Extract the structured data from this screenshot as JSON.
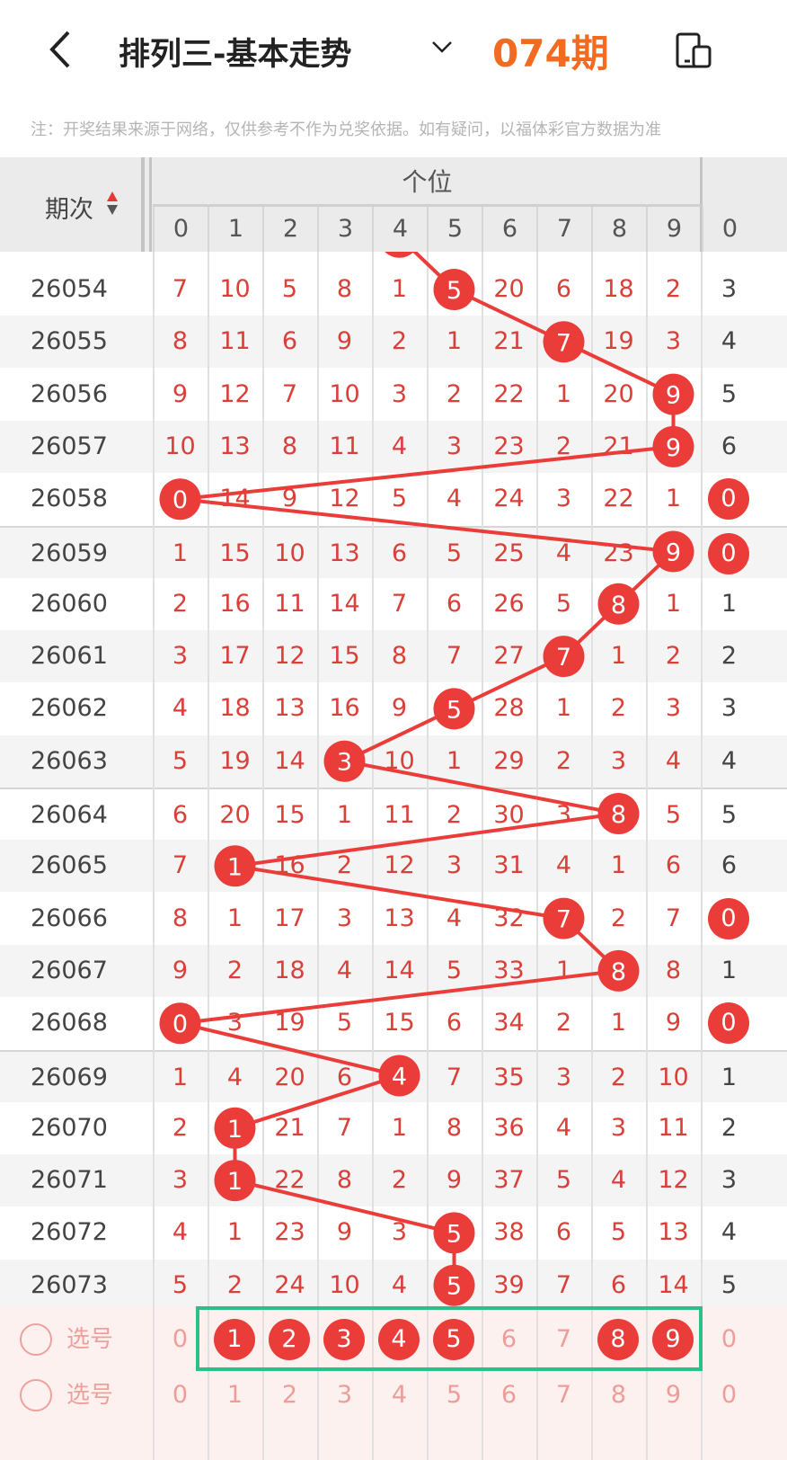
{
  "header": {
    "title": "排列三-基本走势",
    "back_icon": "chevron-left-icon",
    "dropdown_icon": "chevron-down-icon",
    "device_icon": "device-switch-icon"
  },
  "note": "注：开奖结果来源于网络，仅供参考不作为兑奖依据。如有疑问，以福体彩官方数据为准",
  "table": {
    "period_header": "期次",
    "group_header": "个位",
    "digits": [
      "0",
      "1",
      "2",
      "3",
      "4",
      "5",
      "6",
      "7",
      "8",
      "9"
    ],
    "next_group_first": "0",
    "colors": {
      "ball": "#ea3d3a",
      "miss": "#d9403a",
      "select_box": "#2bbf8a",
      "issue": "#f26b21"
    },
    "prev_hit": 4,
    "rows": [
      {
        "period": "26054",
        "cells": [
          7,
          10,
          5,
          8,
          1,
          5,
          20,
          6,
          18,
          2
        ],
        "hit": 5,
        "extra": "3",
        "extra_hit": false
      },
      {
        "period": "26055",
        "cells": [
          8,
          11,
          6,
          9,
          2,
          1,
          21,
          7,
          19,
          3
        ],
        "hit": 7,
        "extra": "4",
        "extra_hit": false
      },
      {
        "period": "26056",
        "cells": [
          9,
          12,
          7,
          10,
          3,
          2,
          22,
          1,
          20,
          9
        ],
        "hit": 9,
        "extra": "5",
        "extra_hit": false
      },
      {
        "period": "26057",
        "cells": [
          10,
          13,
          8,
          11,
          4,
          3,
          23,
          2,
          21,
          9
        ],
        "hit": 9,
        "extra": "6",
        "extra_hit": false
      },
      {
        "period": "26058",
        "cells": [
          0,
          14,
          9,
          12,
          5,
          4,
          24,
          3,
          22,
          1
        ],
        "hit": 0,
        "extra": "0",
        "extra_hit": true
      },
      {
        "period": "26059",
        "cells": [
          1,
          15,
          10,
          13,
          6,
          5,
          25,
          4,
          23,
          9
        ],
        "hit": 9,
        "extra": "0",
        "extra_hit": true
      },
      {
        "period": "26060",
        "cells": [
          2,
          16,
          11,
          14,
          7,
          6,
          26,
          5,
          8,
          1
        ],
        "hit": 8,
        "extra": "1",
        "extra_hit": false
      },
      {
        "period": "26061",
        "cells": [
          3,
          17,
          12,
          15,
          8,
          7,
          27,
          7,
          1,
          2
        ],
        "hit": 7,
        "extra": "2",
        "extra_hit": false
      },
      {
        "period": "26062",
        "cells": [
          4,
          18,
          13,
          16,
          9,
          5,
          28,
          1,
          2,
          3
        ],
        "hit": 5,
        "extra": "3",
        "extra_hit": false
      },
      {
        "period": "26063",
        "cells": [
          5,
          19,
          14,
          3,
          10,
          1,
          29,
          2,
          3,
          4
        ],
        "hit": 3,
        "extra": "4",
        "extra_hit": false
      },
      {
        "period": "26064",
        "cells": [
          6,
          20,
          15,
          1,
          11,
          2,
          30,
          3,
          8,
          5
        ],
        "hit": 8,
        "extra": "5",
        "extra_hit": false
      },
      {
        "period": "26065",
        "cells": [
          7,
          1,
          16,
          2,
          12,
          3,
          31,
          4,
          1,
          6
        ],
        "hit": 1,
        "extra": "6",
        "extra_hit": false
      },
      {
        "period": "26066",
        "cells": [
          8,
          1,
          17,
          3,
          13,
          4,
          32,
          7,
          2,
          7
        ],
        "hit": 7,
        "extra": "0",
        "extra_hit": true
      },
      {
        "period": "26067",
        "cells": [
          9,
          2,
          18,
          4,
          14,
          5,
          33,
          1,
          8,
          8
        ],
        "hit": 8,
        "extra": "1",
        "extra_hit": false
      },
      {
        "period": "26068",
        "cells": [
          0,
          3,
          19,
          5,
          15,
          6,
          34,
          2,
          1,
          9
        ],
        "hit": 0,
        "extra": "0",
        "extra_hit": true
      },
      {
        "period": "26069",
        "cells": [
          1,
          4,
          20,
          6,
          4,
          7,
          35,
          3,
          2,
          10
        ],
        "hit": 4,
        "extra": "1",
        "extra_hit": false
      },
      {
        "period": "26070",
        "cells": [
          2,
          1,
          21,
          7,
          1,
          8,
          36,
          4,
          3,
          11
        ],
        "hit": 1,
        "extra": "2",
        "extra_hit": false
      },
      {
        "period": "26071",
        "cells": [
          3,
          1,
          22,
          8,
          2,
          9,
          37,
          5,
          4,
          12
        ],
        "hit": 1,
        "extra": "3",
        "extra_hit": false
      },
      {
        "period": "26072",
        "cells": [
          4,
          1,
          23,
          9,
          3,
          5,
          38,
          6,
          5,
          13
        ],
        "hit": 5,
        "extra": "4",
        "extra_hit": false
      },
      {
        "period": "26073",
        "cells": [
          5,
          2,
          24,
          10,
          4,
          5,
          39,
          7,
          6,
          14
        ],
        "hit": 5,
        "extra": "5",
        "extra_hit": false
      }
    ]
  },
  "footer": {
    "issue_label": "074期",
    "select_label": "选号",
    "selected_row": {
      "cells": [
        "0",
        "1",
        "2",
        "3",
        "4",
        "5",
        "6",
        "7",
        "8",
        "9"
      ],
      "selected": [
        1,
        2,
        3,
        4,
        5,
        8,
        9
      ],
      "extra": "0"
    },
    "plain_row": {
      "cells": [
        "0",
        "1",
        "2",
        "3",
        "4",
        "5",
        "6",
        "7",
        "8",
        "9"
      ],
      "extra": "0"
    }
  }
}
